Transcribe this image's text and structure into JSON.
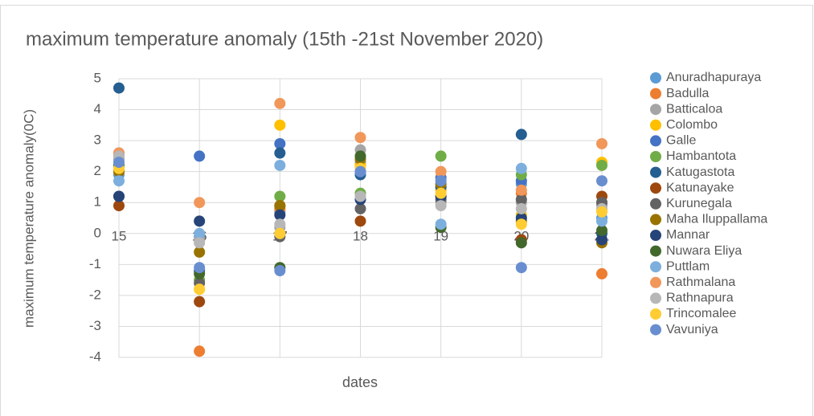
{
  "chart_data": {
    "type": "scatter",
    "title": "maximum temperature anomaly (15th -21st  November 2020)",
    "x_label": "dates",
    "y_label": "maximum temperature anomaly(0C)",
    "x": [
      15,
      16,
      17,
      18,
      19,
      20,
      21
    ],
    "xlim": [
      15,
      21
    ],
    "xticks": [
      15,
      16,
      17,
      18,
      19,
      20,
      21
    ],
    "ylim": [
      -4,
      5
    ],
    "yticks": [
      -4,
      -3,
      -2,
      -1,
      0,
      1,
      2,
      3,
      4,
      5
    ],
    "grid": true,
    "legend": "right",
    "series": [
      {
        "name": "Anuradhapuraya",
        "color": "#5b9bd5",
        "values": [
          1.9,
          -0.1,
          0.7,
          2.3,
          1.6,
          1.6,
          0.5
        ]
      },
      {
        "name": "Badulla",
        "color": "#ed7d31",
        "values": [
          2.0,
          -3.8,
          0.8,
          2.2,
          1.5,
          1.3,
          -1.3
        ]
      },
      {
        "name": "Batticaloa",
        "color": "#a5a5a5",
        "values": [
          2.4,
          -0.2,
          0.2,
          2.7,
          1.0,
          1.0,
          0.9
        ]
      },
      {
        "name": "Colombo",
        "color": "#ffc000",
        "values": [
          2.1,
          -1.8,
          3.5,
          2.2,
          1.4,
          0.6,
          2.3
        ]
      },
      {
        "name": "Galle",
        "color": "#4472c4",
        "values": [
          2.6,
          2.5,
          2.9,
          2.0,
          1.8,
          1.7,
          1.0
        ]
      },
      {
        "name": "Hambantota",
        "color": "#70ad47",
        "values": [
          2.5,
          -1.5,
          1.2,
          1.3,
          2.5,
          1.9,
          2.2
        ]
      },
      {
        "name": "Katugastota",
        "color": "#255e91",
        "values": [
          4.7,
          -1.2,
          2.6,
          1.9,
          1.5,
          3.2,
          0.0
        ]
      },
      {
        "name": "Katunayake",
        "color": "#9e480e",
        "values": [
          0.9,
          -2.2,
          0.9,
          0.4,
          1.2,
          -0.2,
          1.2
        ]
      },
      {
        "name": "Kurunegala",
        "color": "#636363",
        "values": [
          1.2,
          -1.6,
          -0.1,
          0.8,
          1.1,
          1.1,
          1.0
        ]
      },
      {
        "name": "Maha Iluppallama",
        "color": "#997300",
        "values": [
          2.0,
          -0.6,
          0.9,
          2.4,
          1.6,
          0.4,
          -0.3
        ]
      },
      {
        "name": "Mannar",
        "color": "#264478",
        "values": [
          1.2,
          0.4,
          0.6,
          1.1,
          1.2,
          0.5,
          -0.2
        ]
      },
      {
        "name": "Nuwara Eliya",
        "color": "#43682b",
        "values": [
          2.2,
          -1.3,
          -1.1,
          2.5,
          0.2,
          -0.3,
          0.1
        ]
      },
      {
        "name": "Puttlam",
        "color": "#7cafdd",
        "values": [
          1.7,
          0,
          2.2,
          2.0,
          0.3,
          2.1,
          0.4
        ]
      },
      {
        "name": "Rathmalana",
        "color": "#f1975a",
        "values": [
          2.6,
          1.0,
          4.2,
          3.1,
          2.0,
          1.4,
          2.9
        ]
      },
      {
        "name": "Rathnapura",
        "color": "#b7b7b7",
        "values": [
          2.5,
          -0.3,
          0.3,
          1.2,
          0.9,
          0.8,
          0.8
        ]
      },
      {
        "name": "Trincomalee",
        "color": "#ffcd33",
        "values": [
          2.1,
          -1.8,
          0.0,
          2.1,
          1.3,
          0.3,
          0.7
        ]
      },
      {
        "name": "Vavuniya",
        "color": "#698ed0",
        "values": [
          2.3,
          -1.1,
          -1.2,
          2.0,
          1.7,
          -1.1,
          1.7
        ]
      }
    ]
  }
}
